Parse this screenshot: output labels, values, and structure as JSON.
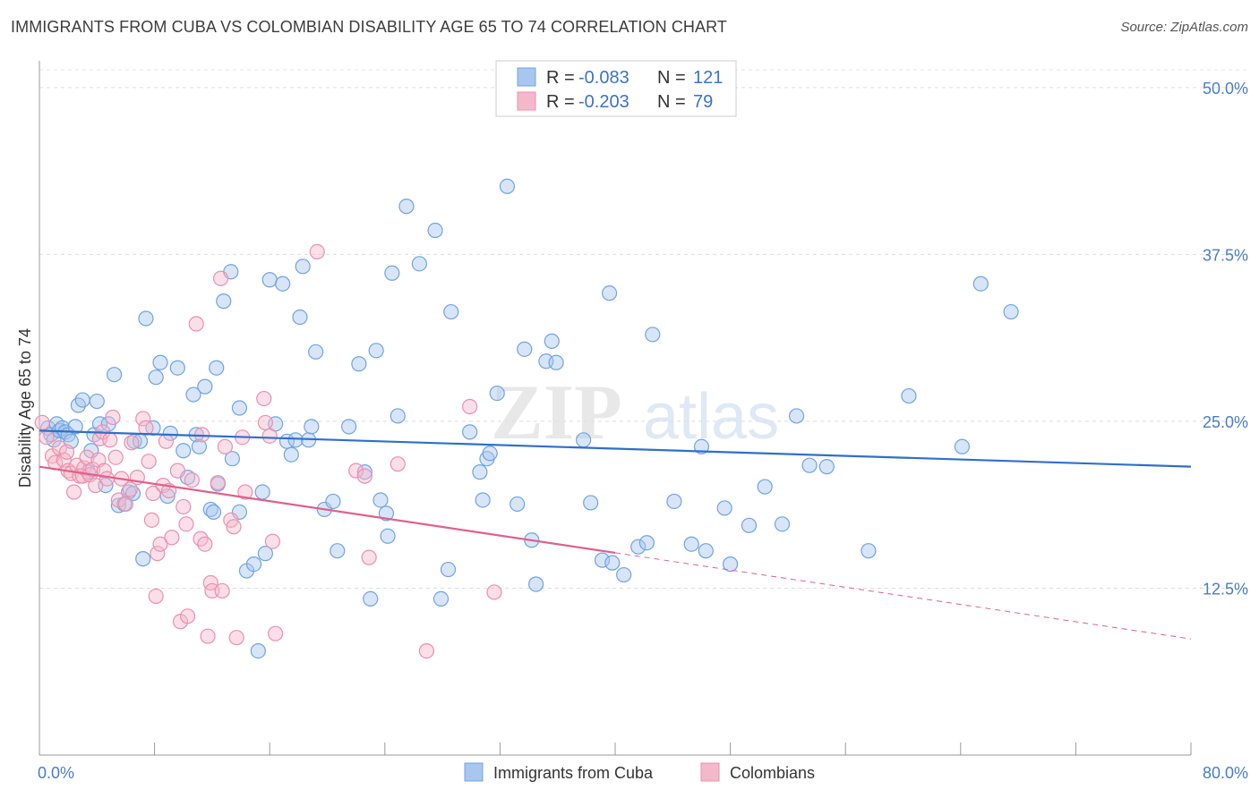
{
  "title": "IMMIGRANTS FROM CUBA VS COLOMBIAN DISABILITY AGE 65 TO 74 CORRELATION CHART",
  "source": "Source: ZipAtlas.com",
  "watermark": {
    "zip": "ZIP",
    "atlas": "atlas"
  },
  "chart_data": {
    "type": "scatter",
    "xlabel": "",
    "ylabel": "Disability Age 65 to 74",
    "xlim": [
      0,
      80
    ],
    "ylim": [
      0,
      52
    ],
    "x_tick_labels": {
      "left": "0.0%",
      "right": "80.0%"
    },
    "y_ticks": [
      {
        "value": 12.5,
        "label": "12.5%"
      },
      {
        "value": 25.0,
        "label": "25.0%"
      },
      {
        "value": 37.5,
        "label": "37.5%"
      },
      {
        "value": 50.0,
        "label": "50.0%"
      }
    ],
    "legend_stats": [
      {
        "r_label": "R =",
        "r_value": "-0.083",
        "n_label": "N =",
        "n_value": "121",
        "color": "#a8c6ee"
      },
      {
        "r_label": "R =",
        "r_value": "-0.203",
        "n_label": "N =",
        "n_value": "79",
        "color": "#f4b8cb"
      }
    ],
    "series": [
      {
        "name": "Immigrants from Cuba",
        "color": "#6fa3e4",
        "fill": "#a8c6ee",
        "trend": {
          "x0": 0,
          "y0": 24.3,
          "x1": 80,
          "y1": 21.6,
          "dashed_from": null,
          "line_color": "#2e6fcc"
        },
        "points": [
          [
            0.6,
            24.5
          ],
          [
            0.8,
            24.0
          ],
          [
            1.0,
            23.6
          ],
          [
            1.2,
            24.8
          ],
          [
            1.4,
            24.3
          ],
          [
            1.6,
            24.5
          ],
          [
            1.8,
            24.2
          ],
          [
            2.0,
            24.0
          ],
          [
            2.2,
            23.5
          ],
          [
            2.5,
            24.6
          ],
          [
            2.7,
            26.2
          ],
          [
            3.0,
            26.6
          ],
          [
            3.4,
            21.2
          ],
          [
            3.6,
            22.8
          ],
          [
            3.8,
            24.0
          ],
          [
            4.0,
            26.5
          ],
          [
            4.2,
            24.8
          ],
          [
            4.6,
            20.2
          ],
          [
            4.8,
            24.8
          ],
          [
            5.2,
            28.5
          ],
          [
            5.5,
            18.7
          ],
          [
            5.9,
            18.8
          ],
          [
            6.2,
            19.7
          ],
          [
            6.5,
            19.6
          ],
          [
            6.6,
            23.5
          ],
          [
            7.0,
            23.5
          ],
          [
            7.2,
            14.7
          ],
          [
            7.4,
            32.7
          ],
          [
            7.9,
            24.5
          ],
          [
            8.1,
            28.3
          ],
          [
            8.4,
            29.4
          ],
          [
            8.9,
            19.4
          ],
          [
            9.1,
            24.1
          ],
          [
            9.6,
            29.0
          ],
          [
            10.0,
            22.8
          ],
          [
            10.3,
            20.8
          ],
          [
            10.7,
            27.0
          ],
          [
            10.9,
            24.0
          ],
          [
            11.1,
            23.1
          ],
          [
            11.5,
            27.6
          ],
          [
            11.9,
            18.4
          ],
          [
            12.1,
            18.2
          ],
          [
            12.3,
            29.0
          ],
          [
            12.4,
            20.3
          ],
          [
            12.8,
            34.0
          ],
          [
            13.3,
            36.2
          ],
          [
            13.4,
            22.2
          ],
          [
            13.9,
            26.0
          ],
          [
            13.9,
            18.2
          ],
          [
            14.4,
            13.8
          ],
          [
            14.9,
            14.3
          ],
          [
            15.2,
            7.8
          ],
          [
            15.5,
            19.7
          ],
          [
            15.7,
            15.1
          ],
          [
            16.0,
            35.6
          ],
          [
            16.4,
            24.8
          ],
          [
            16.9,
            35.3
          ],
          [
            17.2,
            23.5
          ],
          [
            17.5,
            22.5
          ],
          [
            17.8,
            23.6
          ],
          [
            18.1,
            32.8
          ],
          [
            18.3,
            36.6
          ],
          [
            18.7,
            23.6
          ],
          [
            18.9,
            24.6
          ],
          [
            19.2,
            30.2
          ],
          [
            19.8,
            18.4
          ],
          [
            20.4,
            19.0
          ],
          [
            20.7,
            15.3
          ],
          [
            21.5,
            24.6
          ],
          [
            22.2,
            29.3
          ],
          [
            22.6,
            21.2
          ],
          [
            23.0,
            11.7
          ],
          [
            23.4,
            30.3
          ],
          [
            23.7,
            19.1
          ],
          [
            24.1,
            18.1
          ],
          [
            24.2,
            16.4
          ],
          [
            24.5,
            36.1
          ],
          [
            24.9,
            25.4
          ],
          [
            25.5,
            41.1
          ],
          [
            26.4,
            36.8
          ],
          [
            27.5,
            39.3
          ],
          [
            27.9,
            11.7
          ],
          [
            28.4,
            13.9
          ],
          [
            28.6,
            33.2
          ],
          [
            29.9,
            24.2
          ],
          [
            30.6,
            21.2
          ],
          [
            30.8,
            19.1
          ],
          [
            31.1,
            22.2
          ],
          [
            31.3,
            22.6
          ],
          [
            31.8,
            27.1
          ],
          [
            32.5,
            42.6
          ],
          [
            33.2,
            18.8
          ],
          [
            33.7,
            30.4
          ],
          [
            34.2,
            16.1
          ],
          [
            34.5,
            12.8
          ],
          [
            35.2,
            29.5
          ],
          [
            35.6,
            31.0
          ],
          [
            35.9,
            29.4
          ],
          [
            37.8,
            23.6
          ],
          [
            38.3,
            18.9
          ],
          [
            39.1,
            14.6
          ],
          [
            39.6,
            34.6
          ],
          [
            39.8,
            14.4
          ],
          [
            40.6,
            13.5
          ],
          [
            41.6,
            15.6
          ],
          [
            42.2,
            15.9
          ],
          [
            42.6,
            31.5
          ],
          [
            44.1,
            19.0
          ],
          [
            45.3,
            15.8
          ],
          [
            46.0,
            23.1
          ],
          [
            46.3,
            15.3
          ],
          [
            47.6,
            18.5
          ],
          [
            48.0,
            14.3
          ],
          [
            49.3,
            17.2
          ],
          [
            50.4,
            20.1
          ],
          [
            51.6,
            17.3
          ],
          [
            52.6,
            25.4
          ],
          [
            53.5,
            21.7
          ],
          [
            54.7,
            21.6
          ],
          [
            57.6,
            15.3
          ],
          [
            60.4,
            26.9
          ],
          [
            64.1,
            23.1
          ],
          [
            65.4,
            35.3
          ],
          [
            67.5,
            33.2
          ]
        ]
      },
      {
        "name": "Colombians",
        "color": "#ec8fac",
        "fill": "#f4b8cb",
        "trend": {
          "x0": 0,
          "y0": 21.6,
          "x1": 80,
          "y1": 8.7,
          "dashed_from": 40,
          "line_color": "#e0608a"
        },
        "points": [
          [
            0.2,
            24.9
          ],
          [
            0.5,
            23.8
          ],
          [
            0.9,
            22.4
          ],
          [
            1.1,
            21.9
          ],
          [
            1.4,
            23.0
          ],
          [
            1.7,
            22.1
          ],
          [
            1.9,
            22.7
          ],
          [
            2.0,
            21.3
          ],
          [
            2.2,
            21.1
          ],
          [
            2.4,
            19.7
          ],
          [
            2.6,
            21.7
          ],
          [
            2.8,
            20.9
          ],
          [
            3.0,
            20.9
          ],
          [
            3.1,
            21.5
          ],
          [
            3.3,
            22.3
          ],
          [
            3.5,
            21.0
          ],
          [
            3.7,
            21.4
          ],
          [
            3.9,
            20.2
          ],
          [
            4.1,
            22.1
          ],
          [
            4.2,
            23.7
          ],
          [
            4.4,
            24.2
          ],
          [
            4.5,
            21.3
          ],
          [
            4.7,
            20.7
          ],
          [
            4.9,
            23.6
          ],
          [
            5.1,
            25.3
          ],
          [
            5.3,
            22.3
          ],
          [
            5.5,
            19.1
          ],
          [
            5.7,
            20.7
          ],
          [
            6.0,
            18.8
          ],
          [
            6.3,
            19.9
          ],
          [
            6.4,
            23.4
          ],
          [
            6.8,
            20.8
          ],
          [
            7.2,
            25.2
          ],
          [
            7.4,
            24.5
          ],
          [
            7.6,
            22.0
          ],
          [
            7.8,
            17.6
          ],
          [
            7.9,
            19.6
          ],
          [
            8.1,
            11.9
          ],
          [
            8.2,
            15.1
          ],
          [
            8.4,
            15.8
          ],
          [
            8.6,
            20.2
          ],
          [
            8.8,
            23.5
          ],
          [
            9.0,
            19.8
          ],
          [
            9.2,
            16.3
          ],
          [
            9.6,
            21.3
          ],
          [
            9.8,
            10.0
          ],
          [
            10.0,
            18.6
          ],
          [
            10.2,
            17.3
          ],
          [
            10.3,
            10.4
          ],
          [
            10.6,
            20.6
          ],
          [
            10.9,
            32.3
          ],
          [
            11.2,
            16.2
          ],
          [
            11.3,
            24.0
          ],
          [
            11.5,
            15.8
          ],
          [
            11.7,
            8.9
          ],
          [
            11.9,
            12.9
          ],
          [
            12.0,
            12.3
          ],
          [
            12.4,
            20.4
          ],
          [
            12.6,
            35.7
          ],
          [
            12.7,
            12.3
          ],
          [
            12.9,
            23.1
          ],
          [
            13.3,
            17.6
          ],
          [
            13.5,
            17.1
          ],
          [
            13.7,
            8.8
          ],
          [
            14.1,
            23.8
          ],
          [
            14.3,
            19.7
          ],
          [
            15.6,
            26.7
          ],
          [
            15.7,
            24.9
          ],
          [
            16.0,
            23.9
          ],
          [
            16.2,
            16.0
          ],
          [
            16.4,
            9.1
          ],
          [
            19.3,
            37.7
          ],
          [
            22.0,
            21.3
          ],
          [
            22.6,
            20.9
          ],
          [
            22.9,
            14.8
          ],
          [
            24.9,
            21.8
          ],
          [
            26.9,
            7.8
          ],
          [
            29.9,
            26.1
          ],
          [
            31.6,
            12.2
          ]
        ]
      }
    ]
  },
  "legend_bottom": [
    {
      "label": "Immigrants from Cuba",
      "color": "#a8c6ee",
      "stroke": "#6fa3e4"
    },
    {
      "label": "Colombians",
      "color": "#f4b8cb",
      "stroke": "#ec8fac"
    }
  ]
}
